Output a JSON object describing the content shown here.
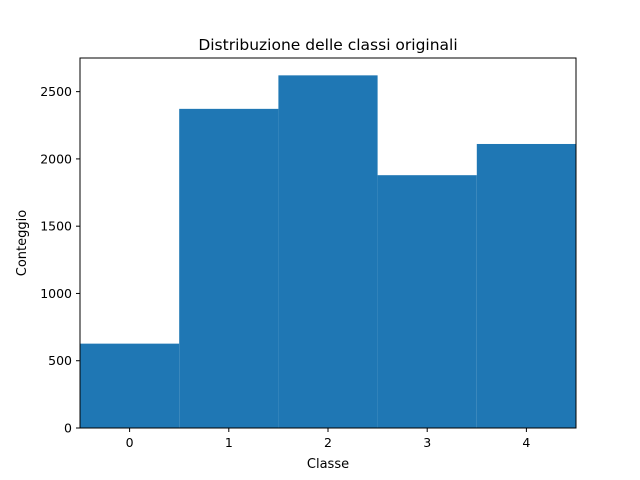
{
  "chart_data": {
    "type": "bar",
    "title": "Distribuzione delle classi originali",
    "xlabel": "Classe",
    "ylabel": "Conteggio",
    "categories": [
      "0",
      "1",
      "2",
      "3",
      "4"
    ],
    "values": [
      627,
      2372,
      2621,
      1879,
      2111
    ],
    "xlim": [
      -0.5,
      4.5
    ],
    "ylim": [
      0,
      2750
    ],
    "yticks": [
      0,
      500,
      1000,
      1500,
      2000,
      2500
    ],
    "bar_color": "#1f77b4",
    "grid": false,
    "legend": false
  }
}
